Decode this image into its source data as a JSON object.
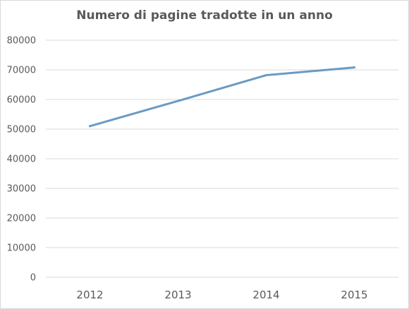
{
  "chart_data": {
    "type": "line",
    "title": "Numero di pagine tradotte in un anno",
    "xlabel": "",
    "ylabel": "",
    "categories": [
      "2012",
      "2013",
      "2014",
      "2015"
    ],
    "series": [
      {
        "values": [
          51000,
          59500,
          68200,
          70800
        ],
        "color": "#6a9ac4"
      }
    ],
    "ylim": [
      0,
      80000
    ],
    "yticks": [
      0,
      10000,
      20000,
      30000,
      40000,
      50000,
      60000,
      70000,
      80000
    ],
    "grid": true,
    "legend": "none"
  }
}
